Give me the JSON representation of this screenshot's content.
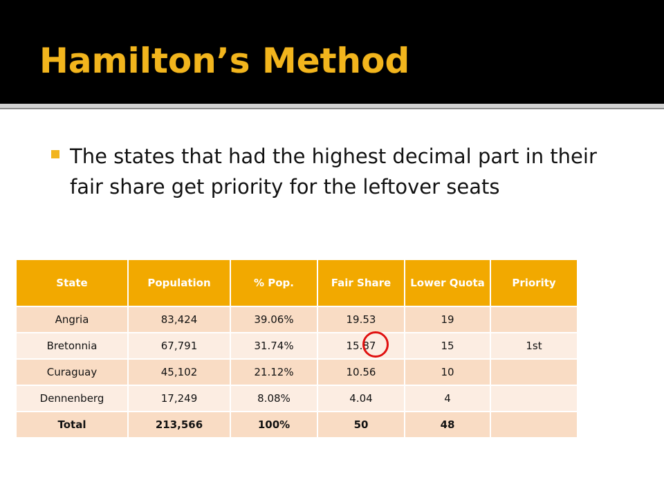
{
  "slide": {
    "title": "Hamilton’s Method",
    "bullet": "The states that had the highest decimal part in their fair share get priority for the leftover seats"
  },
  "table": {
    "headers": [
      "State",
      "Population",
      "% Pop.",
      "Fair Share",
      "Lower Quota",
      "Priority"
    ],
    "rows": [
      [
        "Angria",
        "83,424",
        "39.06%",
        "19.53",
        "19",
        ""
      ],
      [
        "Bretonnia",
        "67,791",
        "31.74%",
        "15.87",
        "15",
        "1st"
      ],
      [
        "Curaguay",
        "45,102",
        "21.12%",
        "10.56",
        "10",
        ""
      ],
      [
        "Dennenberg",
        "17,249",
        "8.08%",
        "4.04",
        "4",
        ""
      ]
    ],
    "total": [
      "Total",
      "213,566",
      "100%",
      "50",
      "48",
      ""
    ]
  },
  "colors": {
    "accent": "#f2b51d",
    "header_bg": "#f2a900",
    "row_odd": "#f9dcc4",
    "row_even": "#fcede2",
    "highlight": "#e01010"
  }
}
